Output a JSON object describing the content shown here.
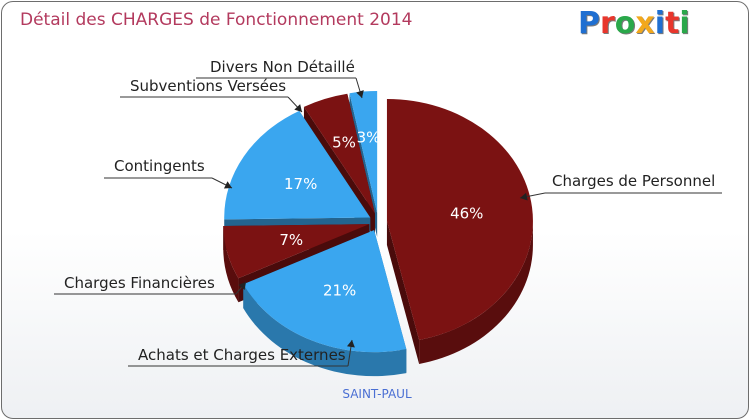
{
  "title": "Détail des CHARGES de Fonctionnement 2014",
  "logo": {
    "text": "Proxiti",
    "colors": [
      "#1f6fd1",
      "#e8362c",
      "#2aa84a",
      "#f2a81d",
      "#1f6fd1",
      "#e8362c",
      "#2aa84a"
    ]
  },
  "city": "SAINT-PAUL",
  "chart_data": {
    "type": "pie",
    "title": "Détail des CHARGES de Fonctionnement 2014",
    "slices": [
      {
        "name": "Charges de Personnel",
        "value": 46,
        "label": "46%",
        "color": "#7b1212"
      },
      {
        "name": "Achats et Charges Externes",
        "value": 21,
        "label": "21%",
        "color": "#3aa6ef"
      },
      {
        "name": "Charges Financières",
        "value": 7,
        "label": "7%",
        "color": "#7b1212"
      },
      {
        "name": "Contingents",
        "value": 17,
        "label": "17%",
        "color": "#3aa6ef"
      },
      {
        "name": "Subventions Versées",
        "value": 5,
        "label": "5%",
        "color": "#7b1212"
      },
      {
        "name": "Divers Non Détaillé",
        "value": 3,
        "label": "3%",
        "color": "#3aa6ef"
      }
    ]
  }
}
